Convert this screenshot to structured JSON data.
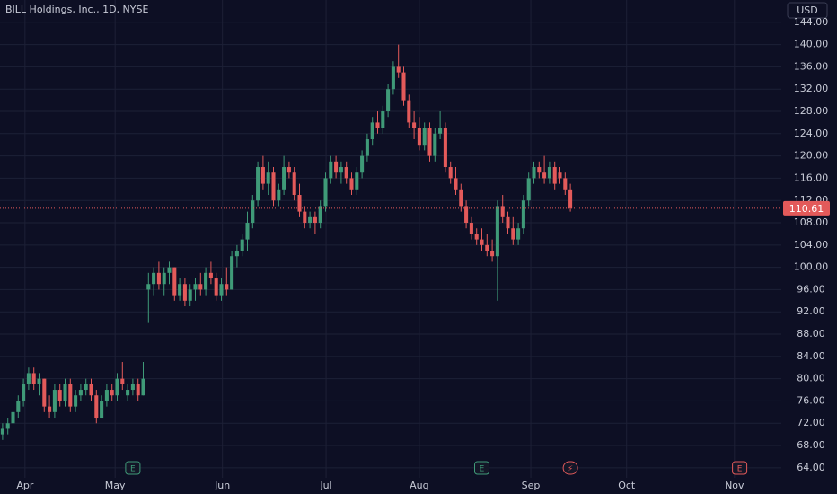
{
  "chart_data": {
    "type": "candlestick",
    "title": "BILL Holdings, Inc., 1D, NYSE",
    "currency": "USD",
    "up_color": "#3f9a78",
    "down_color": "#e35a5a",
    "x": [
      0,
      1,
      2,
      3,
      4,
      5,
      6,
      7,
      8,
      9,
      10,
      11,
      12,
      13,
      14,
      15,
      16,
      17,
      18,
      19,
      20,
      21,
      22,
      23,
      24,
      25,
      26,
      27,
      28,
      29,
      30,
      31,
      32,
      33,
      34,
      35,
      36,
      37,
      38,
      39,
      40,
      41,
      42,
      43,
      44,
      45,
      46,
      47,
      48,
      49,
      50,
      51,
      52,
      53,
      54,
      55,
      56,
      57,
      58,
      59,
      60,
      61,
      62,
      63,
      64,
      65,
      66,
      67,
      68,
      69,
      70,
      71,
      72,
      73,
      74,
      75,
      76,
      77,
      78,
      79,
      80,
      81,
      82,
      83,
      84,
      85,
      86,
      87,
      88,
      89,
      90,
      91,
      92,
      93,
      94,
      95,
      96,
      97,
      98,
      99,
      100,
      101,
      102,
      103,
      104,
      105,
      106,
      107,
      108,
      109
    ],
    "open": [
      70,
      71,
      72,
      74,
      76,
      79,
      81,
      79,
      80,
      75,
      74,
      78,
      76,
      79,
      75,
      77,
      78,
      79,
      77,
      73,
      76,
      78,
      77,
      80,
      77,
      78,
      79,
      77,
      96,
      97,
      99,
      97,
      99,
      100,
      95,
      97,
      94,
      96,
      97,
      96,
      99,
      98,
      95,
      97,
      96,
      102,
      103,
      105,
      108,
      112,
      118,
      115,
      117,
      112,
      114,
      118,
      117,
      113,
      110,
      108,
      109,
      108,
      111,
      116,
      119,
      117,
      118,
      116,
      114,
      117,
      120,
      123,
      126,
      125,
      128,
      132,
      136,
      135,
      130,
      126,
      125,
      122,
      125,
      120,
      124,
      125,
      118,
      116,
      114,
      111,
      108,
      106,
      105,
      104,
      103,
      102,
      111,
      109,
      107,
      105,
      107,
      112,
      116,
      118,
      117,
      116,
      118,
      117,
      116,
      114
    ],
    "high": [
      72,
      73,
      75,
      77,
      80,
      82,
      82,
      81,
      80,
      77,
      79,
      79,
      80,
      80,
      78,
      79,
      80,
      80,
      78,
      77,
      79,
      79,
      81,
      83,
      79,
      80,
      80,
      83,
      99,
      100,
      101,
      100,
      101,
      100,
      98,
      98,
      97,
      98,
      99,
      100,
      101,
      99,
      98,
      100,
      103,
      104,
      106,
      110,
      113,
      119,
      120,
      119,
      118,
      115,
      120,
      119,
      118,
      115,
      111,
      110,
      110,
      112,
      117,
      120,
      120,
      119,
      119,
      117,
      118,
      121,
      124,
      127,
      128,
      129,
      133,
      137,
      140,
      136,
      131,
      128,
      127,
      126,
      126,
      125,
      128,
      126,
      119,
      118,
      115,
      112,
      109,
      107,
      107,
      106,
      105,
      112,
      113,
      110,
      109,
      108,
      113,
      117,
      119,
      119,
      120,
      119,
      119,
      118,
      117,
      115
    ],
    "low": [
      69,
      70,
      71,
      73,
      75,
      78,
      78,
      77,
      74,
      73,
      73,
      75,
      75,
      74,
      74,
      76,
      77,
      76,
      72,
      73,
      75,
      76,
      76,
      78,
      76,
      77,
      76,
      77,
      90,
      95,
      96,
      95,
      97,
      94,
      94,
      93,
      93,
      94,
      95,
      95,
      97,
      94,
      94,
      95,
      96,
      100,
      102,
      103,
      107,
      111,
      114,
      113,
      111,
      111,
      113,
      116,
      112,
      109,
      107,
      107,
      106,
      107,
      110,
      115,
      116,
      115,
      115,
      113,
      113,
      116,
      119,
      122,
      124,
      124,
      127,
      131,
      134,
      129,
      125,
      123,
      121,
      121,
      119,
      119,
      123,
      117,
      115,
      113,
      110,
      107,
      105,
      104,
      103,
      102,
      101,
      94,
      108,
      106,
      104,
      104,
      106,
      111,
      115,
      116,
      115,
      115,
      114,
      115,
      113,
      110
    ],
    "close": [
      71,
      72,
      74,
      76,
      79,
      81,
      79,
      80,
      75,
      74,
      78,
      76,
      79,
      75,
      77,
      78,
      79,
      77,
      73,
      76,
      78,
      77,
      80,
      79,
      78,
      79,
      77,
      80,
      97,
      99,
      97,
      99,
      100,
      95,
      97,
      94,
      96,
      97,
      96,
      99,
      98,
      95,
      97,
      96,
      102,
      103,
      105,
      108,
      112,
      118,
      115,
      117,
      112,
      114,
      118,
      117,
      113,
      110,
      108,
      109,
      108,
      111,
      116,
      119,
      117,
      118,
      116,
      114,
      117,
      120,
      123,
      126,
      125,
      128,
      132,
      136,
      135,
      130,
      126,
      125,
      122,
      125,
      120,
      124,
      125,
      118,
      116,
      114,
      111,
      108,
      106,
      105,
      104,
      103,
      102,
      111,
      109,
      107,
      105,
      107,
      112,
      116,
      118,
      117,
      116,
      118,
      115,
      116,
      114,
      110.61
    ],
    "last_price": 110.61,
    "xlim": [
      -0.5,
      149.5
    ],
    "xticks": [
      {
        "value": 4.3,
        "label": "Apr"
      },
      {
        "value": 21.6,
        "label": "May"
      },
      {
        "value": 42.2,
        "label": "Jun"
      },
      {
        "value": 62.1,
        "label": "Jul"
      },
      {
        "value": 80,
        "label": "Aug"
      },
      {
        "value": 101.4,
        "label": "Sep"
      },
      {
        "value": 119.8,
        "label": "Oct"
      },
      {
        "value": 140.5,
        "label": "Nov"
      }
    ],
    "ylim": [
      62.2,
      148
    ],
    "yticks": [
      {
        "value": 64,
        "label": "64.00"
      },
      {
        "value": 68,
        "label": "68.00"
      },
      {
        "value": 72,
        "label": "72.00"
      },
      {
        "value": 76,
        "label": "76.00"
      },
      {
        "value": 80,
        "label": "80.00"
      },
      {
        "value": 84,
        "label": "84.00"
      },
      {
        "value": 88,
        "label": "88.00"
      },
      {
        "value": 92,
        "label": "92.00"
      },
      {
        "value": 96,
        "label": "96.00"
      },
      {
        "value": 100,
        "label": "100.00"
      },
      {
        "value": 104,
        "label": "104.00"
      },
      {
        "value": 108,
        "label": "108.00"
      },
      {
        "value": 112,
        "label": "112.00"
      },
      {
        "value": 116,
        "label": "116.00"
      },
      {
        "value": 120,
        "label": "120.00"
      },
      {
        "value": 124,
        "label": "124.00"
      },
      {
        "value": 128,
        "label": "128.00"
      },
      {
        "value": 132,
        "label": "132.00"
      },
      {
        "value": 136,
        "label": "136.00"
      },
      {
        "value": 140,
        "label": "140.00"
      },
      {
        "value": 144,
        "label": "144.00"
      }
    ],
    "grid": true,
    "events": [
      {
        "x": 25,
        "label": "E",
        "color": "#3f9a78"
      },
      {
        "x": 92,
        "label": "E",
        "color": "#3f9a78"
      },
      {
        "x": 109,
        "label": "⚡",
        "color": "#e35a5a"
      },
      {
        "x": 141.5,
        "label": "E",
        "color": "#e35a5a"
      }
    ]
  }
}
